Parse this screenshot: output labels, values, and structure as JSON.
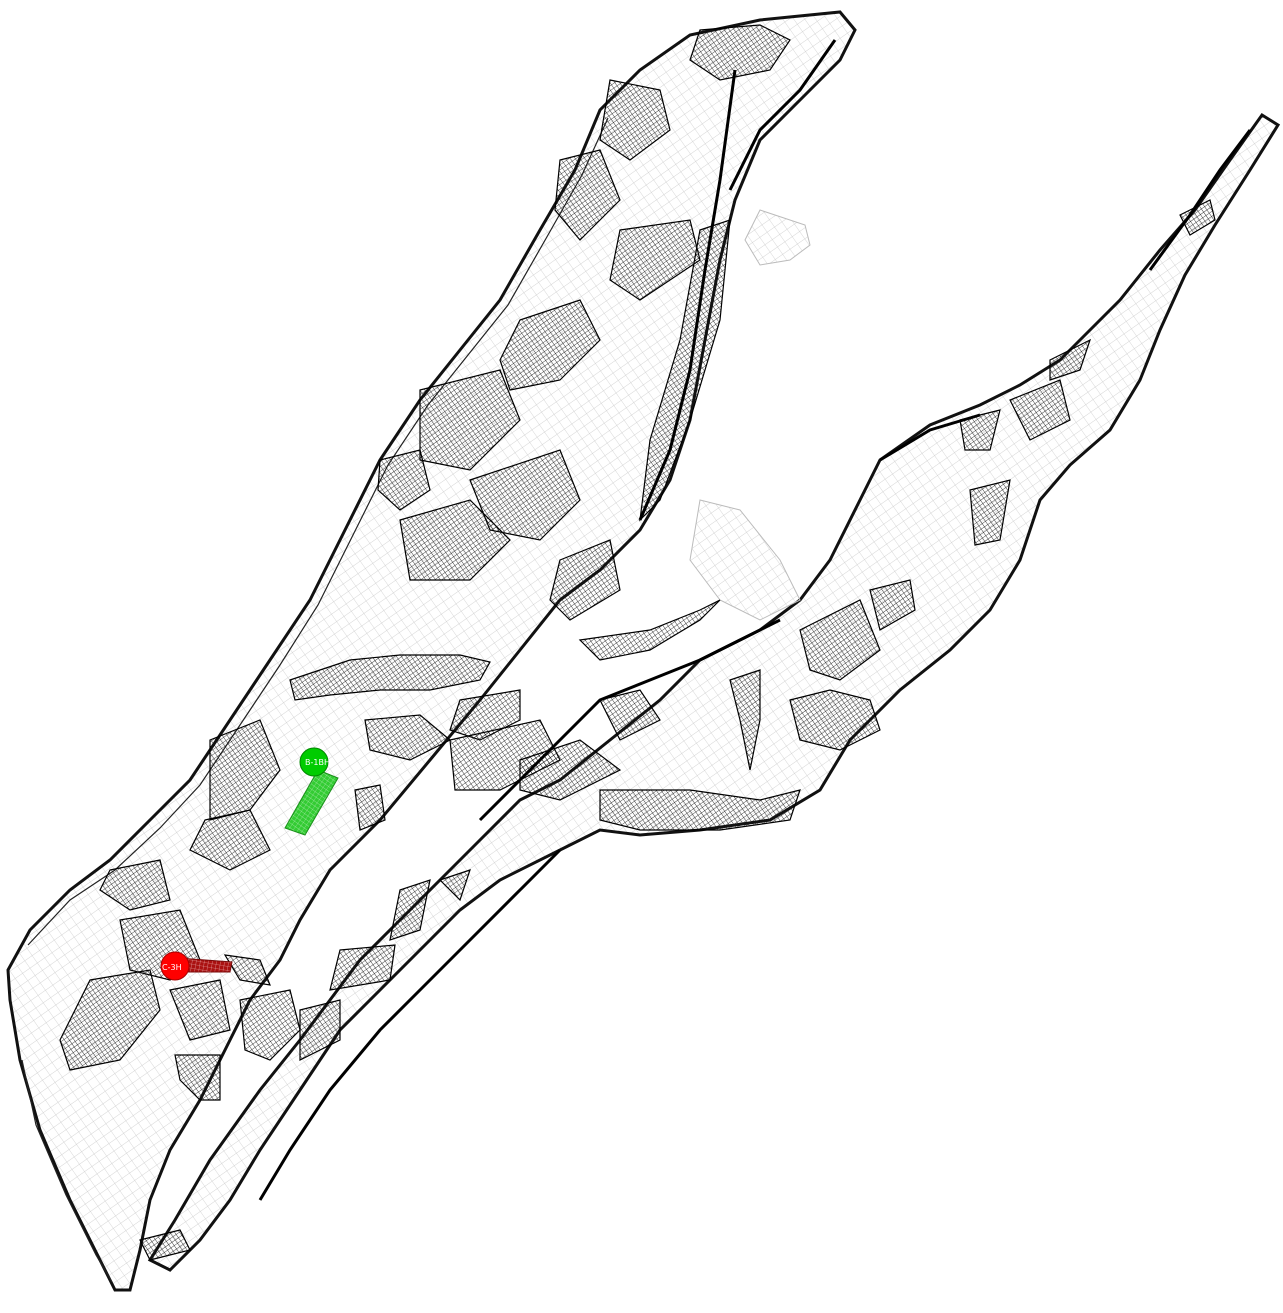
{
  "scene": {
    "background": "#ffffff",
    "grid_color": "#000000",
    "grid_light_color": "#cfcfcf"
  },
  "wells": [
    {
      "label": "B-1BH",
      "marker_color": "#00cc00",
      "completion_color": "#33cc33"
    },
    {
      "label": "C-3H",
      "marker_color": "#ff0000",
      "completion_color": "#cc2222"
    }
  ]
}
